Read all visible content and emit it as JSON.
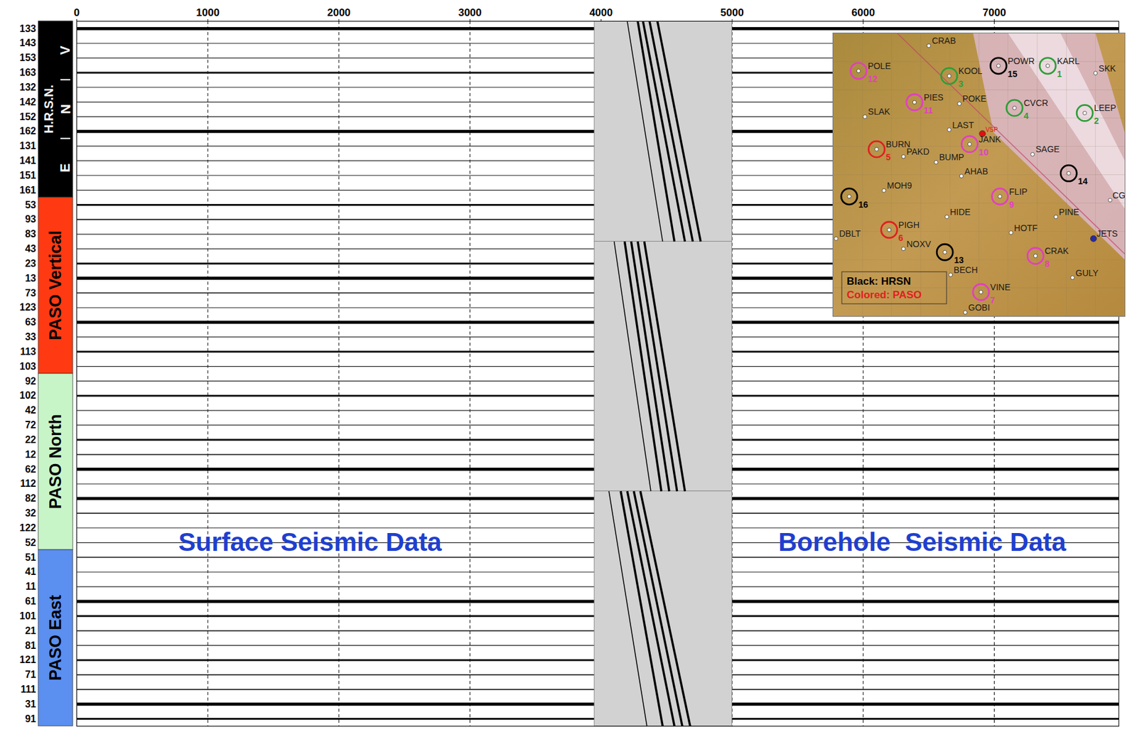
{
  "chart_data": {
    "type": "seismic_traces",
    "xlim": [
      0,
      7950
    ],
    "xticks": [
      0,
      1000,
      2000,
      3000,
      4000,
      5000,
      6000,
      7000
    ],
    "grid": true,
    "series": [
      {
        "name": "133",
        "line_style": "heavy"
      },
      {
        "name": "143",
        "line_style": "solid"
      },
      {
        "name": "153",
        "line_style": "solid"
      },
      {
        "name": "163",
        "line_style": "noisy"
      },
      {
        "name": "132",
        "line_style": "solid"
      },
      {
        "name": "142",
        "line_style": "solid"
      },
      {
        "name": "152",
        "line_style": "solid"
      },
      {
        "name": "162",
        "line_style": "heavy"
      },
      {
        "name": "131",
        "line_style": "solid"
      },
      {
        "name": "141",
        "line_style": "solid"
      },
      {
        "name": "151",
        "line_style": "solid"
      },
      {
        "name": "161",
        "line_style": "solid"
      },
      {
        "name": "53",
        "line_style": "noisy"
      },
      {
        "name": "93",
        "line_style": "wavy"
      },
      {
        "name": "83",
        "line_style": "solid"
      },
      {
        "name": "43",
        "line_style": "solid"
      },
      {
        "name": "23",
        "line_style": "noisy"
      },
      {
        "name": "13",
        "line_style": "heavy"
      },
      {
        "name": "73",
        "line_style": "wavy"
      },
      {
        "name": "123",
        "line_style": "solid"
      },
      {
        "name": "63",
        "line_style": "heavy"
      },
      {
        "name": "33",
        "line_style": "solid"
      },
      {
        "name": "113",
        "line_style": "noisy"
      },
      {
        "name": "103",
        "line_style": "solid"
      },
      {
        "name": "92",
        "line_style": "solid"
      },
      {
        "name": "102",
        "line_style": "noisy"
      },
      {
        "name": "42",
        "line_style": "solid"
      },
      {
        "name": "72",
        "line_style": "solid"
      },
      {
        "name": "22",
        "line_style": "noisy"
      },
      {
        "name": "12",
        "line_style": "wavy"
      },
      {
        "name": "62",
        "line_style": "heavy"
      },
      {
        "name": "112",
        "line_style": "solid"
      },
      {
        "name": "82",
        "line_style": "heavy"
      },
      {
        "name": "32",
        "line_style": "wavy"
      },
      {
        "name": "122",
        "line_style": "solid"
      },
      {
        "name": "52",
        "line_style": "solid"
      },
      {
        "name": "51",
        "line_style": "wavy"
      },
      {
        "name": "41",
        "line_style": "solid"
      },
      {
        "name": "11",
        "line_style": "solid"
      },
      {
        "name": "61",
        "line_style": "heavy"
      },
      {
        "name": "101",
        "line_style": "noisy"
      },
      {
        "name": "21",
        "line_style": "wavy"
      },
      {
        "name": "81",
        "line_style": "solid"
      },
      {
        "name": "121",
        "line_style": "noisy"
      },
      {
        "name": "71",
        "line_style": "wavy"
      },
      {
        "name": "111",
        "line_style": "wavy"
      },
      {
        "name": "31",
        "line_style": "heavy"
      },
      {
        "name": "91",
        "line_style": "noisy"
      }
    ],
    "groups": [
      {
        "label": "H.R.S.N.",
        "color": "#000000",
        "text_color": "#ffffff",
        "from": "133",
        "to": "161",
        "sublabels": [
          {
            "label": "V",
            "from": "133",
            "to": "163"
          },
          {
            "label": "N",
            "from": "132",
            "to": "162"
          },
          {
            "label": "E",
            "from": "131",
            "to": "161"
          }
        ]
      },
      {
        "label": "PASO Vertical",
        "color": "#ff3a12",
        "text_color": "#000000",
        "from": "53",
        "to": "103"
      },
      {
        "label": "PASO North",
        "color": "#c8f5c8",
        "text_color": "#000000",
        "from": "92",
        "to": "52"
      },
      {
        "label": "PASO East",
        "color": "#5b8ff0",
        "text_color": "#000000",
        "from": "51",
        "to": "91"
      }
    ],
    "section": {
      "x": [
        3950,
        5000
      ],
      "blocks": [
        {
          "from": "133",
          "to": "83",
          "arrivals": [
            [
              4200,
              4470
            ],
            [
              4280,
              4560
            ],
            [
              4320,
              4640
            ],
            [
              4370,
              4700
            ],
            [
              4430,
              4760
            ]
          ]
        },
        {
          "from": "43",
          "to": "112",
          "arrivals": [
            [
              4100,
              4380
            ],
            [
              4180,
              4460
            ],
            [
              4230,
              4520
            ],
            [
              4280,
              4580
            ],
            [
              4330,
              4640
            ]
          ]
        },
        {
          "from": "82",
          "to": "91",
          "arrivals": [
            [
              4060,
              4350
            ],
            [
              4150,
              4470
            ],
            [
              4200,
              4560
            ],
            [
              4250,
              4620
            ],
            [
              4300,
              4680
            ]
          ]
        }
      ]
    },
    "annotations": [
      {
        "text": "Surface Seismic Data",
        "x": 1780,
        "channel": "52",
        "color": "#1f3fd0"
      },
      {
        "text": "Borehole  Seismic Data",
        "x": 6450,
        "channel": "52",
        "color": "#1f3fd0"
      }
    ]
  },
  "inset_map": {
    "stations": [
      {
        "name": "CRAB",
        "x": 32.8,
        "y": 4.4
      },
      {
        "name": "POWR",
        "x": 56.7,
        "y": 11.5,
        "ring": "#000000",
        "number": "15"
      },
      {
        "name": "KARL",
        "x": 73.6,
        "y": 11.5,
        "ring": "#2e9e3a",
        "number": "1"
      },
      {
        "name": "SKK",
        "x": 90.0,
        "y": 14.1
      },
      {
        "name": "POLE",
        "x": 8.7,
        "y": 13.3,
        "ring": "#e040c0",
        "number": "12"
      },
      {
        "name": "KOOL",
        "x": 39.8,
        "y": 15.1,
        "ring": "#2e9e3a",
        "number": "3"
      },
      {
        "name": "PIES",
        "x": 27.9,
        "y": 24.4,
        "ring": "#e040c0",
        "number": "11"
      },
      {
        "name": "POKE",
        "x": 43.3,
        "y": 24.9
      },
      {
        "name": "CVCR",
        "x": 62.2,
        "y": 26.4,
        "ring": "#2e9e3a",
        "number": "4"
      },
      {
        "name": "LEEP",
        "x": 86.3,
        "y": 28.2,
        "ring": "#2e9e3a",
        "number": "2"
      },
      {
        "name": "SLAK",
        "x": 10.9,
        "y": 29.5
      },
      {
        "name": "LAST",
        "x": 39.8,
        "y": 34.1
      },
      {
        "name": "VSP",
        "x": 51.2,
        "y": 35.5,
        "dot_color": "#e01010"
      },
      {
        "name": "JANK",
        "x": 46.8,
        "y": 39.2,
        "ring": "#e040c0",
        "number": "10"
      },
      {
        "name": "BURN",
        "x": 14.9,
        "y": 41.0,
        "ring": "#e02020",
        "number": "5"
      },
      {
        "name": "PAKD",
        "x": 24.1,
        "y": 43.6
      },
      {
        "name": "BUMP",
        "x": 35.3,
        "y": 45.6
      },
      {
        "name": "SAGE",
        "x": 68.4,
        "y": 42.8
      },
      {
        "name": "AHAB",
        "x": 44.0,
        "y": 50.5
      },
      {
        "x": 80.8,
        "y": 49.5,
        "ring": "#000000",
        "number": "14"
      },
      {
        "name": "MOH9",
        "x": 17.4,
        "y": 55.6
      },
      {
        "x": 5.5,
        "y": 57.7,
        "ring": "#000000",
        "number": "16"
      },
      {
        "name": "FLIP",
        "x": 57.2,
        "y": 57.7,
        "ring": "#e040c0",
        "number": "9"
      },
      {
        "name": "CG",
        "x": 95.0,
        "y": 59.0
      },
      {
        "name": "HIDE",
        "x": 39.0,
        "y": 64.9
      },
      {
        "name": "PINE",
        "x": 76.4,
        "y": 64.9
      },
      {
        "name": "PIGH",
        "x": 19.2,
        "y": 69.5,
        "ring": "#e02020",
        "number": "6"
      },
      {
        "name": "HOTF",
        "x": 61.0,
        "y": 70.5
      },
      {
        "name": "JETS",
        "x": 89.3,
        "y": 72.6,
        "dot_color": "#2a2aa0"
      },
      {
        "name": "DBLT",
        "x": 1.0,
        "y": 72.6
      },
      {
        "name": "NOXV",
        "x": 24.1,
        "y": 76.2
      },
      {
        "x": 38.3,
        "y": 77.4,
        "ring": "#000000",
        "number": "13"
      },
      {
        "name": "CRAK",
        "x": 69.4,
        "y": 78.7,
        "ring": "#e040c0",
        "number": "8"
      },
      {
        "name": "BECH",
        "x": 40.3,
        "y": 85.4
      },
      {
        "name": "GULY",
        "x": 82.1,
        "y": 86.4
      },
      {
        "name": "VINE",
        "x": 50.7,
        "y": 91.5,
        "ring": "#e040c0",
        "number": "7"
      },
      {
        "name": "GOBI",
        "x": 45.3,
        "y": 98.7
      }
    ],
    "legend": [
      {
        "text": "Black: HRSN",
        "color": "#000000"
      },
      {
        "text": "Colored: PASO",
        "color": "#e02020"
      }
    ]
  }
}
